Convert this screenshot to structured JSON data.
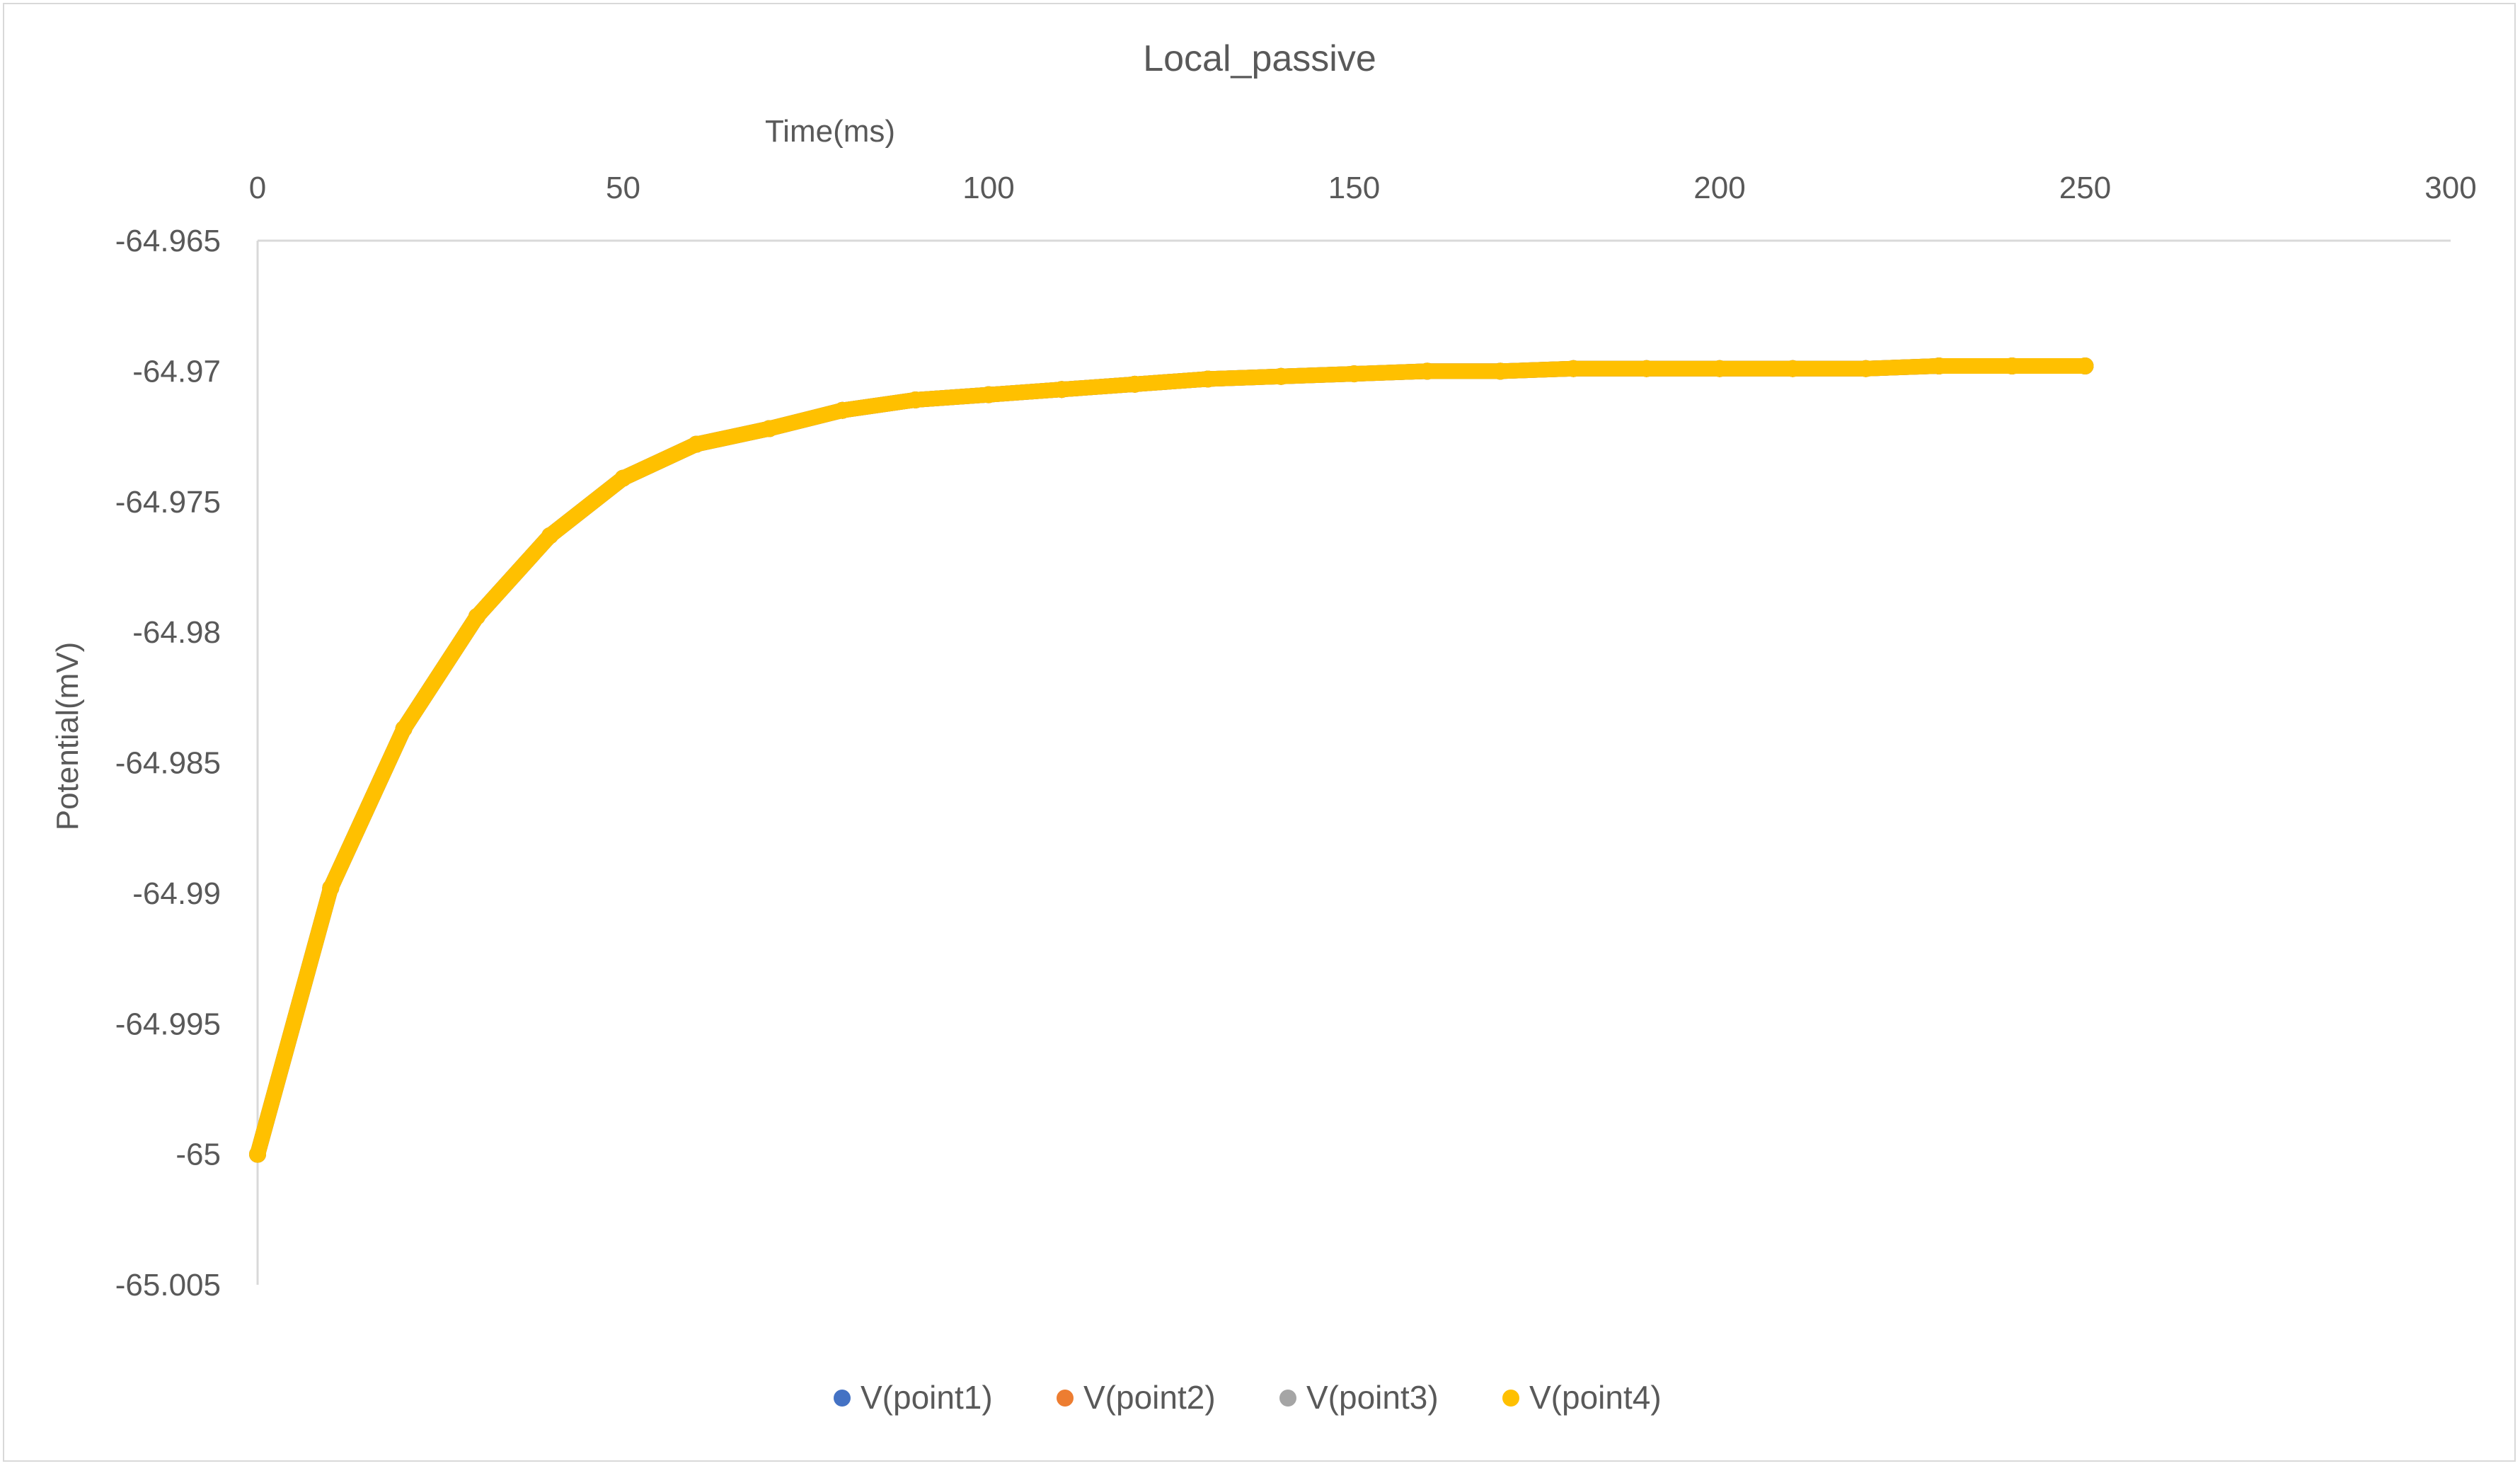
{
  "chart_data": {
    "type": "scatter",
    "title": "Local_passive",
    "xlabel": "Time(ms)",
    "ylabel": "Potential(mV)",
    "x_axis_position": "top",
    "xlim": [
      0,
      300
    ],
    "ylim": [
      -65.005,
      -64.965
    ],
    "x_ticks": [
      0,
      50,
      100,
      150,
      200,
      250,
      300
    ],
    "x_tick_labels": [
      "0",
      "50",
      "100",
      "150",
      "200",
      "250",
      "300"
    ],
    "y_ticks": [
      -64.965,
      -64.97,
      -64.975,
      -64.98,
      -64.985,
      -64.99,
      -64.995,
      -65,
      -65.005
    ],
    "y_tick_labels": [
      "-64.965",
      "-64.97",
      "-64.975",
      "-64.98",
      "-64.985",
      "-64.99",
      "-64.995",
      "-65",
      "-65.005"
    ],
    "grid": false,
    "legend_position": "bottom",
    "series": [
      {
        "name": "V(point1)",
        "color": "#4472C4",
        "x": [
          0,
          10,
          20,
          30,
          40,
          50,
          60,
          70,
          80,
          90,
          100,
          110,
          120,
          130,
          140,
          150,
          160,
          170,
          180,
          190,
          200,
          210,
          220,
          230,
          240,
          250
        ],
        "y": [
          -65.0,
          -64.9898,
          -64.9837,
          -64.9794,
          -64.9763,
          -64.9741,
          -64.9728,
          -64.9722,
          -64.9715,
          -64.9711,
          -64.9709,
          -64.9707,
          -64.9705,
          -64.9703,
          -64.9702,
          -64.9701,
          -64.97,
          -64.97,
          -64.9699,
          -64.9699,
          -64.9699,
          -64.9699,
          -64.9699,
          -64.9698,
          -64.9698,
          -64.9698
        ]
      },
      {
        "name": "V(point2)",
        "color": "#ED7D31",
        "x": [
          0,
          10,
          20,
          30,
          40,
          50,
          60,
          70,
          80,
          90,
          100,
          110,
          120,
          130,
          140,
          150,
          160,
          170,
          180,
          190,
          200,
          210,
          220,
          230,
          240,
          250
        ],
        "y": [
          -65.0,
          -64.9898,
          -64.9837,
          -64.9794,
          -64.9763,
          -64.9741,
          -64.9728,
          -64.9722,
          -64.9715,
          -64.9711,
          -64.9709,
          -64.9707,
          -64.9705,
          -64.9703,
          -64.9702,
          -64.9701,
          -64.97,
          -64.97,
          -64.9699,
          -64.9699,
          -64.9699,
          -64.9699,
          -64.9699,
          -64.9698,
          -64.9698,
          -64.9698
        ]
      },
      {
        "name": "V(point3)",
        "color": "#A5A5A5",
        "x": [
          0,
          10,
          20,
          30,
          40,
          50,
          60,
          70,
          80,
          90,
          100,
          110,
          120,
          130,
          140,
          150,
          160,
          170,
          180,
          190,
          200,
          210,
          220,
          230,
          240,
          250
        ],
        "y": [
          -65.0,
          -64.9898,
          -64.9837,
          -64.9794,
          -64.9763,
          -64.9741,
          -64.9728,
          -64.9722,
          -64.9715,
          -64.9711,
          -64.9709,
          -64.9707,
          -64.9705,
          -64.9703,
          -64.9702,
          -64.9701,
          -64.97,
          -64.97,
          -64.9699,
          -64.9699,
          -64.9699,
          -64.9699,
          -64.9699,
          -64.9698,
          -64.9698,
          -64.9698
        ]
      },
      {
        "name": "V(point4)",
        "color": "#FFC000",
        "x": [
          0,
          10,
          20,
          30,
          40,
          50,
          60,
          70,
          80,
          90,
          100,
          110,
          120,
          130,
          140,
          150,
          160,
          170,
          180,
          190,
          200,
          210,
          220,
          230,
          240,
          250
        ],
        "y": [
          -65.0,
          -64.9898,
          -64.9837,
          -64.9794,
          -64.9763,
          -64.9741,
          -64.9728,
          -64.9722,
          -64.9715,
          -64.9711,
          -64.9709,
          -64.9707,
          -64.9705,
          -64.9703,
          -64.9702,
          -64.9701,
          -64.97,
          -64.97,
          -64.9699,
          -64.9699,
          -64.9699,
          -64.9699,
          -64.9699,
          -64.9698,
          -64.9698,
          -64.9698
        ]
      }
    ]
  }
}
